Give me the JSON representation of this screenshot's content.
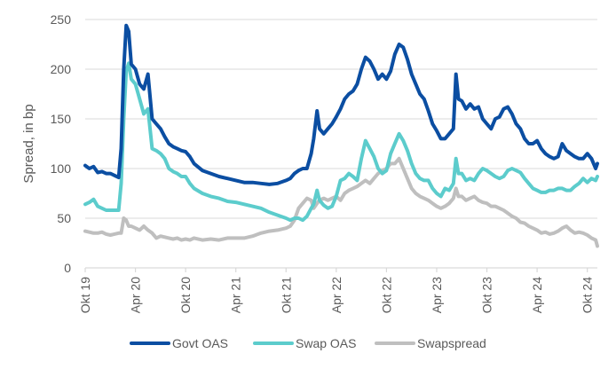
{
  "chart_data": {
    "type": "line",
    "title": "",
    "xlabel": "",
    "ylabel": "Spread, in bp",
    "ylim": [
      0,
      250
    ],
    "yticks": [
      0,
      50,
      100,
      150,
      200,
      250
    ],
    "grid": true,
    "legend_position": "bottom",
    "x_unit": "months since Okt 19",
    "xlim": [
      0,
      61.2
    ],
    "xticks": [
      {
        "x": 0,
        "label": "Okt 19"
      },
      {
        "x": 6,
        "label": "Apr 20"
      },
      {
        "x": 12,
        "label": "Okt 20"
      },
      {
        "x": 18,
        "label": "Apr 21"
      },
      {
        "x": 24,
        "label": "Okt 21"
      },
      {
        "x": 30,
        "label": "Apr 22"
      },
      {
        "x": 36,
        "label": "Okt 22"
      },
      {
        "x": 42,
        "label": "Apr 23"
      },
      {
        "x": 48,
        "label": "Okt 23"
      },
      {
        "x": 54,
        "label": "Apr 24"
      },
      {
        "x": 60,
        "label": "Okt 24"
      }
    ],
    "x": [
      0,
      0.5,
      1,
      1.5,
      2,
      2.5,
      3,
      3.5,
      4,
      4.3,
      4.6,
      4.9,
      5.2,
      5.5,
      6,
      6.5,
      7,
      7.5,
      8,
      8.5,
      9,
      9.5,
      10,
      10.5,
      11,
      11.5,
      12,
      12.5,
      13,
      14,
      15,
      16,
      17,
      18,
      19,
      20,
      21,
      22,
      23,
      24,
      24.5,
      25,
      25.5,
      26,
      26.5,
      27,
      27.3,
      27.7,
      28,
      28.5,
      29,
      29.5,
      30,
      30.5,
      31,
      31.5,
      32,
      32.5,
      33,
      33.5,
      34,
      34.5,
      35,
      35.5,
      36,
      36.5,
      37,
      37.5,
      38,
      38.5,
      39,
      39.5,
      40,
      40.5,
      41,
      41.5,
      42,
      42.5,
      43,
      43.5,
      44,
      44.3,
      44.6,
      45,
      45.5,
      46,
      46.5,
      47,
      47.5,
      48,
      48.5,
      49,
      49.5,
      50,
      50.5,
      51,
      51.5,
      52,
      52.5,
      53,
      53.5,
      54,
      54.5,
      55,
      55.5,
      56,
      56.5,
      57,
      57.5,
      58,
      58.5,
      59,
      59.5,
      60,
      60.5,
      61,
      61.2
    ],
    "series": [
      {
        "name": "Govt OAS",
        "color": "#0b4ea2",
        "values": [
          103,
          100,
          102,
          96,
          97,
          95,
          95,
          93,
          91,
          120,
          200,
          244,
          238,
          205,
          200,
          185,
          180,
          195,
          150,
          145,
          140,
          132,
          125,
          122,
          120,
          118,
          117,
          112,
          105,
          98,
          95,
          92,
          90,
          88,
          86,
          86,
          85,
          84,
          85,
          88,
          90,
          95,
          98,
          100,
          100,
          115,
          130,
          158,
          140,
          135,
          140,
          145,
          152,
          160,
          170,
          175,
          178,
          185,
          200,
          212,
          208,
          200,
          190,
          195,
          190,
          198,
          215,
          225,
          222,
          210,
          195,
          185,
          175,
          170,
          158,
          145,
          138,
          130,
          130,
          135,
          140,
          195,
          170,
          168,
          160,
          165,
          160,
          162,
          150,
          145,
          140,
          150,
          152,
          160,
          162,
          155,
          145,
          140,
          130,
          125,
          125,
          128,
          120,
          115,
          112,
          110,
          112,
          125,
          118,
          115,
          112,
          110,
          110,
          115,
          110,
          100,
          105,
          107,
          107
        ],
        "line_width": 4
      },
      {
        "name": "Swap OAS",
        "color": "#5ccccc",
        "values": [
          64,
          66,
          69,
          62,
          60,
          58,
          58,
          58,
          58,
          85,
          150,
          198,
          206,
          190,
          185,
          170,
          155,
          160,
          120,
          118,
          115,
          110,
          100,
          97,
          95,
          92,
          92,
          85,
          80,
          75,
          72,
          70,
          67,
          66,
          64,
          62,
          60,
          56,
          53,
          50,
          48,
          50,
          50,
          48,
          52,
          60,
          64,
          78,
          68,
          63,
          60,
          62,
          72,
          88,
          90,
          95,
          92,
          88,
          110,
          128,
          120,
          112,
          100,
          95,
          98,
          115,
          125,
          135,
          128,
          118,
          105,
          95,
          90,
          88,
          88,
          80,
          75,
          72,
          80,
          78,
          85,
          110,
          95,
          95,
          88,
          90,
          88,
          95,
          100,
          98,
          95,
          92,
          90,
          92,
          98,
          100,
          98,
          96,
          90,
          85,
          80,
          78,
          76,
          76,
          78,
          78,
          80,
          80,
          78,
          78,
          82,
          85,
          90,
          86,
          90,
          88,
          92,
          90,
          92
        ],
        "line_width": 4
      },
      {
        "name": "Swapspread",
        "color": "#bfbfbf",
        "values": [
          37,
          36,
          35,
          35,
          36,
          34,
          33,
          34,
          35,
          35,
          50,
          48,
          42,
          42,
          40,
          38,
          42,
          38,
          35,
          30,
          32,
          31,
          30,
          29,
          30,
          28,
          29,
          28,
          30,
          28,
          29,
          28,
          30,
          30,
          30,
          32,
          35,
          37,
          38,
          40,
          42,
          48,
          60,
          65,
          70,
          68,
          60,
          65,
          68,
          70,
          68,
          70,
          72,
          68,
          75,
          78,
          80,
          82,
          85,
          88,
          85,
          90,
          95,
          98,
          100,
          105,
          105,
          110,
          100,
          90,
          80,
          75,
          72,
          70,
          68,
          65,
          62,
          60,
          62,
          65,
          70,
          80,
          72,
          72,
          68,
          70,
          72,
          68,
          66,
          65,
          62,
          62,
          60,
          58,
          55,
          52,
          50,
          46,
          45,
          42,
          40,
          38,
          35,
          36,
          34,
          35,
          37,
          40,
          42,
          38,
          35,
          36,
          35,
          33,
          30,
          28,
          22,
          14,
          16
        ]
      }
    ]
  }
}
